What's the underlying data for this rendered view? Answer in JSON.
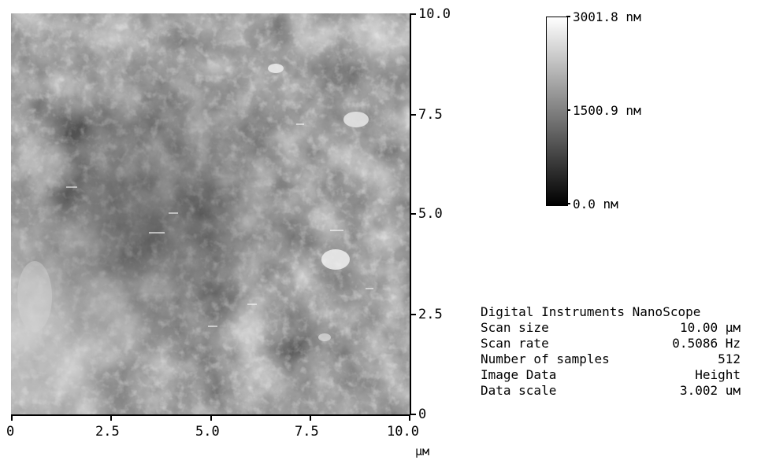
{
  "image": {
    "description_icon": "afm-height-map",
    "x_ticks": [
      "0",
      "2.5",
      "5.0",
      "7.5",
      "10.0"
    ],
    "y_ticks": [
      "10.0",
      "7.5",
      "5.0",
      "2.5",
      "0"
    ],
    "x_unit": "µм"
  },
  "colorbar": {
    "top": "3001.8 nм",
    "mid": "1500.9 nм",
    "bottom": "0.0 nм",
    "colors": [
      "#ffffff",
      "#000000"
    ]
  },
  "info": {
    "title": "Digital Instruments NanoScope",
    "rows": [
      {
        "label": "Scan size",
        "value": "10.00 µм"
      },
      {
        "label": "Scan rate",
        "value": "0.5086 Hz"
      },
      {
        "label": "Number of samples",
        "value": "512"
      },
      {
        "label": "Image Data",
        "value": "Height"
      },
      {
        "label": "Data scale",
        "value": "3.002 uм"
      }
    ]
  }
}
